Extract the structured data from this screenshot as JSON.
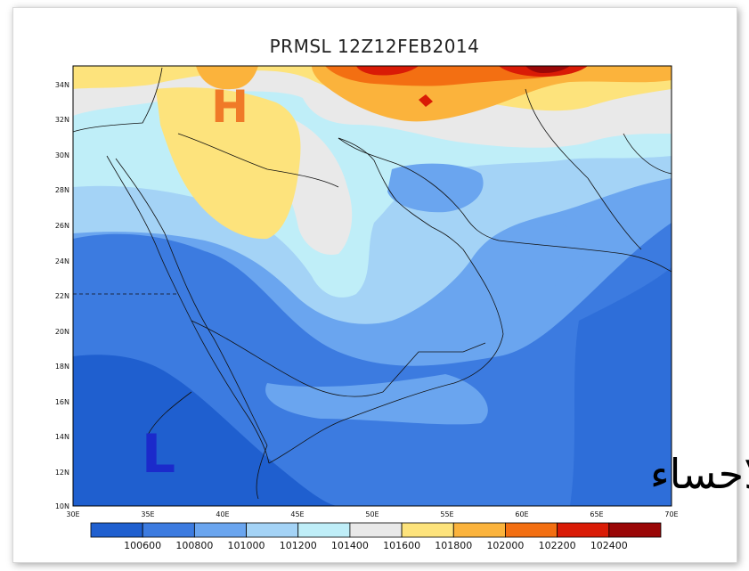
{
  "title": "PRMSL 12Z12FEB2014",
  "map": {
    "lat_labels": [
      "34N",
      "32N",
      "30N",
      "28N",
      "26N",
      "24N",
      "22N",
      "20N",
      "18N",
      "16N",
      "14N",
      "12N",
      "10N"
    ],
    "lon_labels": [
      "30E",
      "35E",
      "40E",
      "45E",
      "50E",
      "55E",
      "60E",
      "65E",
      "70E"
    ],
    "high_label": "H",
    "low_label": "L",
    "watermark": "براري الاحساء"
  },
  "colorbar": {
    "labels": [
      "100600",
      "100800",
      "101000",
      "101200",
      "101400",
      "101600",
      "101800",
      "102000",
      "102200",
      "102400"
    ],
    "colors": [
      "#1f5fcf",
      "#3c7be0",
      "#6aa5ef",
      "#a4d3f6",
      "#bfeef8",
      "#e9e9e9",
      "#fde37c",
      "#fbb33c",
      "#f36f12",
      "#d91b06",
      "#9a0707"
    ]
  },
  "colors": {
    "high_marker": "#f07a28",
    "low_marker": "#1b2acb"
  }
}
